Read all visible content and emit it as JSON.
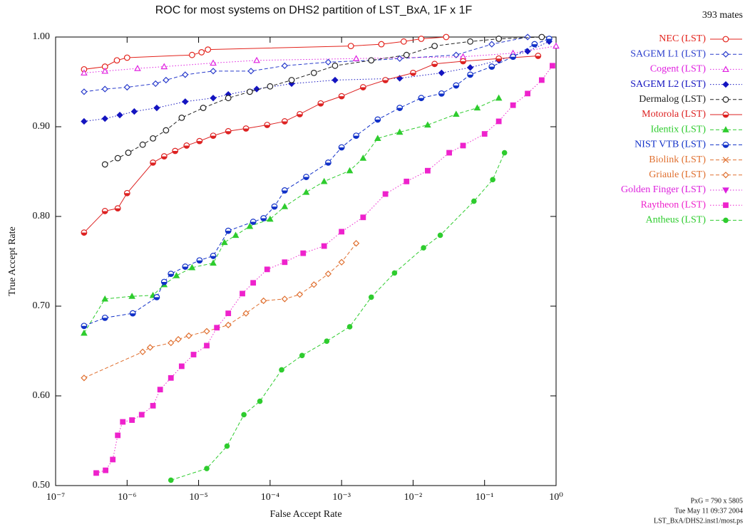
{
  "chart_data": {
    "type": "line",
    "title": "ROC for most systems on DHS2 partition of LST_BxA,  1F x 1F",
    "x_label": "False Accept Rate",
    "y_label": "True Accept Rate",
    "annotations": [
      "393 mates",
      "PxG = 790 x 5805",
      "Tue May 11 09:37 2004",
      "LST_BxA/DHS2.inst1/most.ps"
    ],
    "xscale": "log",
    "xlim": [
      1e-07,
      1
    ],
    "ylim": [
      0.5,
      1.0
    ],
    "xticks": [
      {
        "value": 1e-07,
        "label": "10⁻⁷"
      },
      {
        "value": 1e-06,
        "label": "10⁻⁶"
      },
      {
        "value": 1e-05,
        "label": "10⁻⁵"
      },
      {
        "value": 0.0001,
        "label": "10⁻⁴"
      },
      {
        "value": 0.001,
        "label": "10⁻³"
      },
      {
        "value": 0.01,
        "label": "10⁻²"
      },
      {
        "value": 0.1,
        "label": "10⁻¹"
      },
      {
        "value": 1,
        "label": "10⁰"
      }
    ],
    "yticks": [
      {
        "value": 0.5,
        "label": "0.50"
      },
      {
        "value": 0.6,
        "label": "0.60"
      },
      {
        "value": 0.7,
        "label": "0.70"
      },
      {
        "value": 0.8,
        "label": "0.80"
      },
      {
        "value": 0.9,
        "label": "0.90"
      },
      {
        "value": 1.0,
        "label": "1.00"
      }
    ],
    "legend": "right",
    "series": [
      {
        "name": "NEC (LST)",
        "color": "#e3231c",
        "marker": "circle-open",
        "dash": "solid",
        "x": [
          2.5e-07,
          4.9e-07,
          7.2e-07,
          1e-06,
          8.1e-06,
          1.1e-05,
          1.35e-05,
          0.00135,
          0.0036,
          0.0074,
          0.013,
          0.029
        ],
        "values": [
          0.964,
          0.967,
          0.974,
          0.977,
          0.98,
          0.983,
          0.986,
          0.99,
          0.992,
          0.995,
          0.998,
          1.0
        ]
      },
      {
        "name": "SAGEM L1 (LST)",
        "color": "#2a3ccc",
        "marker": "diamond-open",
        "dash": "dashed",
        "x": [
          2.5e-07,
          4.9e-07,
          1e-06,
          2.5e-06,
          3.5e-06,
          6.5e-06,
          1.6e-05,
          5.4e-05,
          0.00016,
          0.00065,
          0.0026,
          0.0065,
          0.04,
          0.126,
          0.4
        ],
        "values": [
          0.939,
          0.942,
          0.944,
          0.948,
          0.952,
          0.958,
          0.962,
          0.962,
          0.968,
          0.972,
          0.974,
          0.976,
          0.98,
          0.992,
          1.0
        ]
      },
      {
        "name": "Cogent (LST)",
        "color": "#e020e0",
        "marker": "triangle-open",
        "dash": "dotted",
        "x": [
          2.5e-07,
          4.9e-07,
          1.4e-06,
          3.3e-06,
          1.6e-05,
          6.5e-05,
          0.0016,
          0.05,
          0.25,
          1.0
        ],
        "values": [
          0.96,
          0.962,
          0.965,
          0.967,
          0.971,
          0.974,
          0.976,
          0.978,
          0.982,
          0.99
        ]
      },
      {
        "name": "SAGEM L2 (LST)",
        "color": "#1414c0",
        "marker": "diamond",
        "dash": "dotted",
        "x": [
          2.5e-07,
          4.9e-07,
          7.9e-07,
          1.26e-06,
          2.6e-06,
          6.5e-06,
          1.6e-05,
          2.6e-05,
          6.5e-05,
          0.0002,
          0.00081,
          0.0065,
          0.025,
          0.063,
          0.158,
          0.4,
          0.8
        ],
        "values": [
          0.906,
          0.909,
          0.913,
          0.917,
          0.921,
          0.928,
          0.932,
          0.936,
          0.942,
          0.948,
          0.952,
          0.954,
          0.96,
          0.966,
          0.974,
          0.984,
          0.995
        ]
      },
      {
        "name": "Dermalog (LST)",
        "color": "#222222",
        "marker": "circle-open",
        "dash": "dashed",
        "x": [
          4.9e-07,
          7.4e-07,
          1.04e-06,
          1.65e-06,
          2.3e-06,
          3.5e-06,
          5.8e-06,
          1.16e-05,
          2.6e-05,
          5.2e-05,
          0.0001,
          0.0002,
          0.00041,
          0.00081,
          0.0026,
          0.0081,
          0.02,
          0.063,
          0.158,
          0.63
        ],
        "values": [
          0.858,
          0.865,
          0.871,
          0.88,
          0.887,
          0.896,
          0.91,
          0.921,
          0.932,
          0.939,
          0.945,
          0.952,
          0.96,
          0.968,
          0.974,
          0.98,
          0.99,
          0.995,
          0.998,
          1.0
        ]
      },
      {
        "name": "Motorola (LST)",
        "color": "#dd2222",
        "marker": "circle-half",
        "dash": "solid",
        "x": [
          2.5e-07,
          4.9e-07,
          7.4e-07,
          1e-06,
          2.3e-06,
          3.3e-06,
          4.7e-06,
          6.8e-06,
          1.03e-05,
          1.6e-05,
          2.6e-05,
          4.6e-05,
          9.1e-05,
          0.00016,
          0.00026,
          0.00051,
          0.001,
          0.002,
          0.0041,
          0.01,
          0.02,
          0.05,
          0.158,
          0.56
        ],
        "values": [
          0.782,
          0.806,
          0.809,
          0.826,
          0.86,
          0.867,
          0.873,
          0.879,
          0.884,
          0.89,
          0.895,
          0.898,
          0.902,
          0.906,
          0.914,
          0.926,
          0.934,
          0.944,
          0.952,
          0.96,
          0.97,
          0.973,
          0.976,
          0.979
        ]
      },
      {
        "name": "Identix (LST)",
        "color": "#2ecc2e",
        "marker": "triangle",
        "dash": "dashed",
        "x": [
          2.5e-07,
          4.9e-07,
          1.17e-06,
          2.3e-06,
          3.3e-06,
          4.9e-06,
          8.1e-06,
          1.6e-05,
          2.3e-05,
          3.3e-05,
          5.2e-05,
          0.0001,
          0.00016,
          0.00032,
          0.00057,
          0.0013,
          0.002,
          0.0032,
          0.0065,
          0.016,
          0.04,
          0.079,
          0.158
        ],
        "values": [
          0.67,
          0.708,
          0.711,
          0.712,
          0.724,
          0.734,
          0.743,
          0.748,
          0.771,
          0.779,
          0.789,
          0.797,
          0.811,
          0.827,
          0.839,
          0.851,
          0.865,
          0.887,
          0.894,
          0.902,
          0.914,
          0.921,
          0.932
        ]
      },
      {
        "name": "NIST VTB (LST)",
        "color": "#1030c8",
        "marker": "circle-half",
        "dash": "dashed",
        "x": [
          2.5e-07,
          4.9e-07,
          1.2e-06,
          2.6e-06,
          3.3e-06,
          4.1e-06,
          6.5e-06,
          1.03e-05,
          1.6e-05,
          2.6e-05,
          5.8e-05,
          8.1e-05,
          0.000115,
          0.00016,
          0.00032,
          0.00065,
          0.001,
          0.0016,
          0.0032,
          0.0065,
          0.013,
          0.025,
          0.04,
          0.063,
          0.126,
          0.25,
          0.5,
          0.8
        ],
        "values": [
          0.678,
          0.687,
          0.692,
          0.71,
          0.727,
          0.736,
          0.744,
          0.751,
          0.756,
          0.784,
          0.794,
          0.798,
          0.811,
          0.829,
          0.844,
          0.86,
          0.877,
          0.89,
          0.908,
          0.921,
          0.932,
          0.937,
          0.946,
          0.958,
          0.967,
          0.978,
          0.992,
          0.998
        ]
      },
      {
        "name": "Biolink (LST)",
        "color": "#e07030",
        "marker": "x",
        "dash": "dashed",
        "x": [],
        "values": []
      },
      {
        "name": "Griaule (LST)",
        "color": "#e07030",
        "marker": "diamond-open",
        "dash": "dashed",
        "x": [
          2.5e-07,
          1.65e-06,
          2.1e-06,
          4.1e-06,
          5.2e-06,
          7.3e-06,
          1.3e-05,
          2.6e-05,
          4.6e-05,
          8.1e-05,
          0.00016,
          0.00026,
          0.00041,
          0.00065,
          0.001,
          0.0016
        ],
        "values": [
          0.62,
          0.649,
          0.654,
          0.659,
          0.663,
          0.667,
          0.672,
          0.679,
          0.692,
          0.706,
          0.708,
          0.713,
          0.724,
          0.736,
          0.749,
          0.77
        ]
      },
      {
        "name": "Golden Finger (LST)",
        "color": "#dd22dd",
        "marker": "triangle-down",
        "dash": "dotted",
        "x": [],
        "values": []
      },
      {
        "name": "Raytheon (LST)",
        "color": "#ee22cc",
        "marker": "square",
        "dash": "dotted",
        "x": [
          3.7e-07,
          5e-07,
          6.3e-07,
          7.4e-07,
          8.7e-07,
          1.17e-06,
          1.6e-06,
          2.3e-06,
          2.9e-06,
          4.1e-06,
          5.8e-06,
          8.5e-06,
          1.3e-05,
          1.8e-05,
          2.6e-05,
          4.1e-05,
          5.8e-05,
          9.1e-05,
          0.00016,
          0.00029,
          0.00057,
          0.001,
          0.002,
          0.0041,
          0.0081,
          0.016,
          0.032,
          0.05,
          0.1,
          0.158,
          0.25,
          0.4,
          0.63,
          0.89
        ],
        "values": [
          0.514,
          0.517,
          0.529,
          0.556,
          0.571,
          0.573,
          0.579,
          0.589,
          0.607,
          0.62,
          0.633,
          0.646,
          0.656,
          0.676,
          0.692,
          0.714,
          0.726,
          0.741,
          0.749,
          0.759,
          0.767,
          0.783,
          0.799,
          0.825,
          0.839,
          0.851,
          0.871,
          0.879,
          0.892,
          0.906,
          0.924,
          0.937,
          0.952,
          0.968
        ]
      },
      {
        "name": "Antheus (LST)",
        "color": "#2ecc2e",
        "marker": "circle",
        "dash": "dashed",
        "x": [
          4.1e-06,
          1.3e-05,
          2.5e-05,
          4.3e-05,
          7.2e-05,
          0.000145,
          0.00028,
          0.00062,
          0.0013,
          0.0026,
          0.0055,
          0.014,
          0.024,
          0.071,
          0.13,
          0.19
        ],
        "values": [
          0.506,
          0.519,
          0.544,
          0.579,
          0.594,
          0.629,
          0.645,
          0.661,
          0.677,
          0.71,
          0.737,
          0.765,
          0.779,
          0.817,
          0.841,
          0.871
        ]
      }
    ]
  }
}
